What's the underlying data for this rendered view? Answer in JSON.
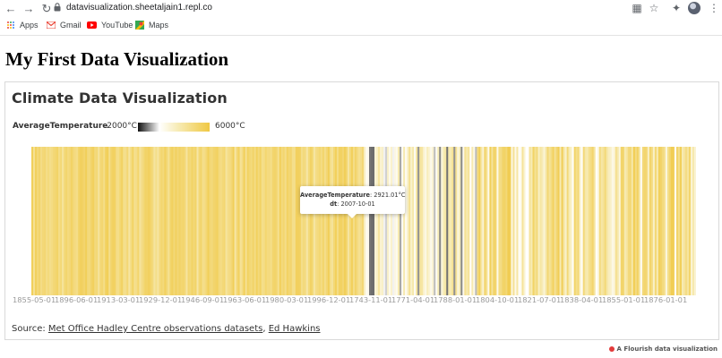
{
  "browser": {
    "url": "datavisualization.sheetaljain1.repl.co",
    "bookmarks": [
      {
        "label": "Apps",
        "icon": "apps-grid-icon"
      },
      {
        "label": "Gmail",
        "icon": "gmail-icon"
      },
      {
        "label": "YouTube",
        "icon": "youtube-icon"
      },
      {
        "label": "Maps",
        "icon": "maps-icon"
      }
    ]
  },
  "page": {
    "title": "My First Data Visualization"
  },
  "chart_data": {
    "type": "heatmap",
    "title": "Climate Data Visualization",
    "legend": {
      "title": "AverageTemperature",
      "min_label": "-2000°C",
      "max_label": "6000°C",
      "range": [
        -2000,
        6000
      ],
      "colors": [
        "#111111",
        "#ffffff",
        "#f7ecb8",
        "#f0c843"
      ]
    },
    "x_tick_labels": [
      "1855-05-01",
      "1896-06-01",
      "1913-03-01",
      "1929-12-01",
      "1946-09-01",
      "1963-06-01",
      "1980-03-01",
      "1996-12-01",
      "1743-11-01",
      "1771-04-01",
      "1788-01-01",
      "1804-10-01",
      "1821-07-01",
      "1838-04-01",
      "1855-01-01",
      "1876-01-01"
    ],
    "tooltip": {
      "field1_label": "AverageTemperature",
      "field1_value": "2921.01°C",
      "field2_label": "dt",
      "field2_value": "2007-10-01"
    },
    "source": {
      "prefix": "Source: ",
      "link1": "Met Office Hadley Centre observations datasets",
      "separator": ", ",
      "link2": "Ed Hawkins"
    }
  },
  "footer": {
    "credit": "A Flourish data visualization"
  }
}
